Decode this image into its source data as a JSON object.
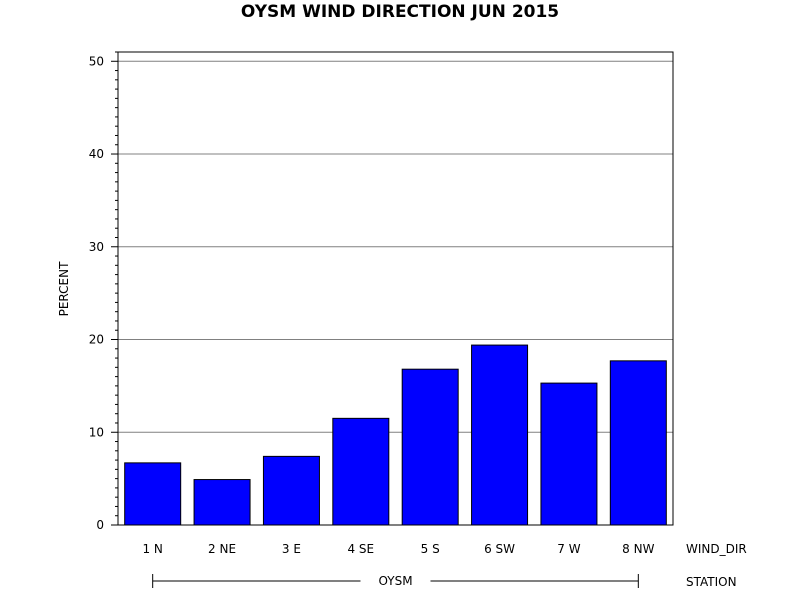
{
  "chart_data": {
    "type": "bar",
    "title": "OYSM WIND DIRECTION JUN 2015",
    "ylabel": "PERCENT",
    "xlabel": "WIND_DIR",
    "group_label": "STATION",
    "group_value": "OYSM",
    "categories": [
      "1 N",
      "2 NE",
      "3 E",
      "4 SE",
      "5 S",
      "6 SW",
      "7 W",
      "8 NW"
    ],
    "values": [
      6.7,
      4.9,
      7.4,
      11.5,
      16.8,
      19.4,
      15.3,
      17.7
    ],
    "ylim": [
      0,
      51
    ],
    "yticks": [
      0,
      10,
      20,
      30,
      40,
      50
    ],
    "grid": true,
    "bar_color": "#0000ff",
    "grid_color": "#808080"
  }
}
